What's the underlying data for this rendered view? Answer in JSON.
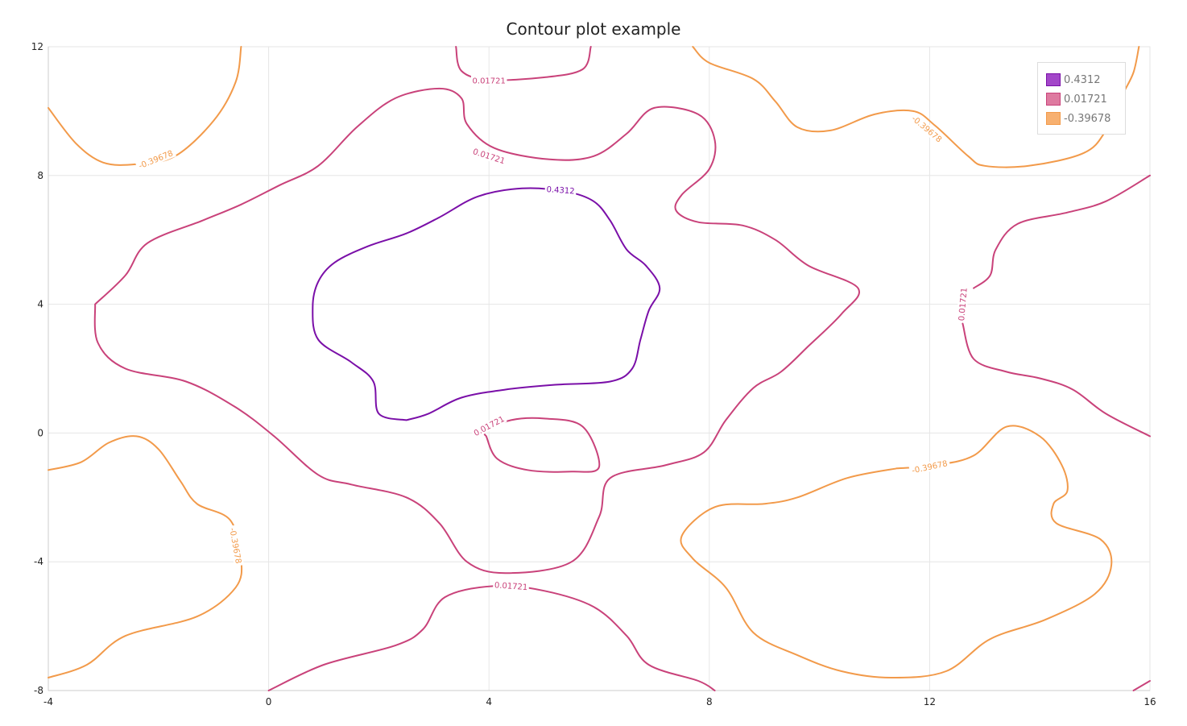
{
  "chart_data": {
    "type": "contour",
    "title": "Contour plot example",
    "xlabel": "",
    "ylabel": "",
    "xlim": [
      -4,
      16
    ],
    "ylim": [
      -8,
      12
    ],
    "x_ticks": [
      -4,
      0,
      4,
      8,
      12,
      16
    ],
    "y_ticks": [
      12,
      8,
      4,
      0,
      -4,
      -8
    ],
    "grid": true,
    "legend_position": "top-right",
    "levels": [
      {
        "name": "0.4312",
        "value": 0.4312,
        "color": "#7a0fa8",
        "swatch": "#a347c9",
        "swatch_border": "#7a0fa8"
      },
      {
        "name": "0.01721",
        "value": 0.01721,
        "color": "#c9427a",
        "swatch": "#de7aa0",
        "swatch_border": "#c9427a"
      },
      {
        "name": "-0.39678",
        "value": -0.39678,
        "color": "#f29a4a",
        "swatch": "#f7b070",
        "swatch_border": "#f29a4a"
      }
    ],
    "contours": [
      {
        "level": 0,
        "label": "0.4312",
        "label_at": [
          5.3,
          7.55
        ],
        "label_angle": 4,
        "points": [
          [
            2.5,
            0.4
          ],
          [
            2.0,
            0.6
          ],
          [
            1.9,
            1.6
          ],
          [
            1.5,
            2.2
          ],
          [
            0.9,
            2.9
          ],
          [
            0.8,
            3.9
          ],
          [
            0.9,
            4.7
          ],
          [
            1.2,
            5.3
          ],
          [
            1.8,
            5.8
          ],
          [
            2.5,
            6.2
          ],
          [
            3.1,
            6.7
          ],
          [
            3.8,
            7.35
          ],
          [
            4.6,
            7.6
          ],
          [
            5.4,
            7.5
          ],
          [
            5.9,
            7.2
          ],
          [
            6.2,
            6.6
          ],
          [
            6.5,
            5.7
          ],
          [
            6.85,
            5.2
          ],
          [
            7.1,
            4.5
          ],
          [
            6.9,
            3.8
          ],
          [
            6.75,
            2.9
          ],
          [
            6.6,
            2.0
          ],
          [
            6.2,
            1.6
          ],
          [
            5.2,
            1.5
          ],
          [
            4.3,
            1.35
          ],
          [
            3.5,
            1.1
          ],
          [
            2.9,
            0.6
          ],
          [
            2.5,
            0.4
          ]
        ]
      },
      {
        "level": 1,
        "label": "0.01721",
        "label_at": [
          4.0,
          0.22
        ],
        "label_angle": -28,
        "points": [
          [
            3.95,
            -0.1
          ],
          [
            4.15,
            -0.8
          ],
          [
            4.7,
            -1.15
          ],
          [
            5.5,
            -1.2
          ],
          [
            6.0,
            -1.05
          ],
          [
            5.7,
            0.2
          ],
          [
            5.0,
            0.45
          ],
          [
            4.4,
            0.4
          ],
          [
            3.95,
            0.05
          ],
          [
            3.95,
            -0.1
          ]
        ]
      },
      {
        "level": 1,
        "label": "0.01721",
        "label_at": [
          4.4,
          -4.75
        ],
        "label_angle": 4,
        "points": [
          [
            0.0,
            -8.0
          ],
          [
            1.0,
            -7.2
          ],
          [
            2.3,
            -6.6
          ],
          [
            2.8,
            -6.1
          ],
          [
            3.2,
            -5.1
          ],
          [
            4.1,
            -4.75
          ],
          [
            5.0,
            -4.9
          ],
          [
            5.9,
            -5.4
          ],
          [
            6.5,
            -6.3
          ],
          [
            6.9,
            -7.2
          ],
          [
            7.8,
            -7.7
          ],
          [
            8.1,
            -8.0
          ]
        ]
      },
      {
        "level": 1,
        "label": "0.01721",
        "label_at": [
          4.0,
          10.95
        ],
        "label_angle": 0,
        "points": [
          [
            3.4,
            12.0
          ],
          [
            3.5,
            11.25
          ],
          [
            4.0,
            10.97
          ],
          [
            5.0,
            11.05
          ],
          [
            5.7,
            11.3
          ],
          [
            5.85,
            12.0
          ]
        ]
      },
      {
        "level": 1,
        "label": "0.01721",
        "label_at": [
          12.6,
          4.0
        ],
        "label_angle": -85,
        "points": [
          [
            12.6,
            3.4
          ],
          [
            12.8,
            2.3
          ],
          [
            13.4,
            1.9
          ],
          [
            14.0,
            1.7
          ],
          [
            14.6,
            1.35
          ],
          [
            15.2,
            0.6
          ],
          [
            16.0,
            -0.1
          ]
        ]
      },
      {
        "level": 1,
        "label": "",
        "points": [
          [
            12.8,
            4.5
          ],
          [
            13.1,
            4.9
          ],
          [
            13.2,
            5.7
          ],
          [
            13.6,
            6.5
          ],
          [
            14.5,
            6.85
          ],
          [
            15.2,
            7.2
          ],
          [
            16.0,
            8.0
          ]
        ]
      },
      {
        "level": 1,
        "label": "0.01721",
        "label_at": [
          4.0,
          8.6
        ],
        "label_angle": 18,
        "points": [
          [
            -3.15,
            4.0
          ],
          [
            -2.6,
            4.9
          ],
          [
            -2.2,
            5.9
          ],
          [
            -1.2,
            6.6
          ],
          [
            -0.5,
            7.1
          ],
          [
            0.2,
            7.7
          ],
          [
            0.9,
            8.3
          ],
          [
            1.6,
            9.5
          ],
          [
            2.3,
            10.4
          ],
          [
            3.1,
            10.7
          ],
          [
            3.5,
            10.4
          ],
          [
            3.6,
            9.6
          ],
          [
            4.1,
            8.85
          ],
          [
            5.1,
            8.5
          ],
          [
            5.9,
            8.6
          ],
          [
            6.5,
            9.3
          ],
          [
            7.0,
            10.1
          ],
          [
            7.8,
            9.9
          ],
          [
            8.1,
            9.1
          ],
          [
            8.0,
            8.2
          ],
          [
            7.5,
            7.4
          ],
          [
            7.4,
            6.9
          ],
          [
            7.8,
            6.55
          ],
          [
            8.6,
            6.45
          ],
          [
            9.2,
            6.0
          ],
          [
            9.8,
            5.2
          ],
          [
            10.7,
            4.5
          ],
          [
            10.4,
            3.7
          ],
          [
            9.8,
            2.7
          ],
          [
            9.3,
            1.9
          ],
          [
            8.8,
            1.4
          ],
          [
            8.3,
            0.4
          ],
          [
            7.9,
            -0.6
          ],
          [
            7.2,
            -1.0
          ],
          [
            6.2,
            -1.4
          ],
          [
            6.0,
            -2.6
          ],
          [
            5.5,
            -4.0
          ],
          [
            4.3,
            -4.35
          ],
          [
            3.6,
            -4.0
          ],
          [
            3.1,
            -2.8
          ],
          [
            2.5,
            -2.0
          ],
          [
            1.5,
            -1.6
          ],
          [
            0.9,
            -1.3
          ],
          [
            0.1,
            -0.1
          ],
          [
            -0.6,
            0.8
          ],
          [
            -1.5,
            1.6
          ],
          [
            -2.6,
            2.0
          ],
          [
            -3.1,
            2.8
          ],
          [
            -3.15,
            4.0
          ]
        ]
      },
      {
        "level": 1,
        "label": "",
        "points": [
          [
            15.7,
            -8.0
          ],
          [
            16.0,
            -7.7
          ]
        ]
      },
      {
        "level": 2,
        "label": "-0.39678",
        "label_at": [
          -2.05,
          8.5
        ],
        "label_angle": -22,
        "points": [
          [
            -4.0,
            10.1
          ],
          [
            -3.5,
            9.0
          ],
          [
            -3.0,
            8.4
          ],
          [
            -2.4,
            8.35
          ],
          [
            -1.7,
            8.6
          ],
          [
            -1.0,
            9.7
          ],
          [
            -0.6,
            10.9
          ],
          [
            -0.5,
            12.0
          ]
        ]
      },
      {
        "level": 2,
        "label": "-0.39678",
        "label_at": [
          -0.6,
          -3.5
        ],
        "label_angle": 80,
        "points": [
          [
            -4.0,
            -1.15
          ],
          [
            -3.4,
            -0.9
          ],
          [
            -2.9,
            -0.3
          ],
          [
            -2.4,
            -0.1
          ],
          [
            -2.0,
            -0.5
          ],
          [
            -1.6,
            -1.5
          ],
          [
            -1.3,
            -2.2
          ],
          [
            -0.7,
            -2.7
          ],
          [
            -0.5,
            -3.9
          ],
          [
            -0.6,
            -4.8
          ],
          [
            -1.3,
            -5.7
          ],
          [
            -2.6,
            -6.3
          ],
          [
            -3.3,
            -7.2
          ],
          [
            -4.0,
            -7.6
          ]
        ]
      },
      {
        "level": 2,
        "label": "-0.39678",
        "label_at": [
          11.95,
          9.45
        ],
        "label_angle": 40,
        "points": [
          [
            7.7,
            12.0
          ],
          [
            8.0,
            11.5
          ],
          [
            8.8,
            11.0
          ],
          [
            9.2,
            10.3
          ],
          [
            9.6,
            9.5
          ],
          [
            10.2,
            9.4
          ],
          [
            11.0,
            9.9
          ],
          [
            11.7,
            10.0
          ],
          [
            12.1,
            9.55
          ],
          [
            12.7,
            8.6
          ],
          [
            13.0,
            8.3
          ],
          [
            13.8,
            8.3
          ],
          [
            14.8,
            8.7
          ],
          [
            15.2,
            9.4
          ],
          [
            15.5,
            10.5
          ],
          [
            15.7,
            11.2
          ],
          [
            15.8,
            12.0
          ]
        ]
      },
      {
        "level": 2,
        "label": "-0.39678",
        "label_at": [
          12.0,
          -1.05
        ],
        "label_angle": -12,
        "points": [
          [
            11.4,
            -1.1
          ],
          [
            12.1,
            -1.0
          ],
          [
            12.8,
            -0.7
          ],
          [
            13.4,
            0.2
          ],
          [
            14.0,
            -0.1
          ],
          [
            14.4,
            -1.0
          ],
          [
            14.5,
            -1.8
          ],
          [
            14.25,
            -2.2
          ],
          [
            14.3,
            -2.8
          ],
          [
            15.1,
            -3.3
          ],
          [
            15.3,
            -4.1
          ],
          [
            15.0,
            -5.0
          ],
          [
            14.1,
            -5.8
          ],
          [
            13.1,
            -6.4
          ],
          [
            12.3,
            -7.4
          ],
          [
            11.3,
            -7.6
          ],
          [
            10.4,
            -7.4
          ],
          [
            9.6,
            -6.9
          ],
          [
            8.8,
            -6.2
          ],
          [
            8.3,
            -4.8
          ],
          [
            7.7,
            -3.9
          ],
          [
            7.5,
            -3.2
          ],
          [
            8.1,
            -2.3
          ],
          [
            9.0,
            -2.2
          ],
          [
            9.6,
            -2.0
          ],
          [
            10.5,
            -1.4
          ],
          [
            11.4,
            -1.1
          ]
        ]
      }
    ]
  },
  "legend": {
    "items": [
      {
        "label": "0.4312"
      },
      {
        "label": "0.01721"
      },
      {
        "label": "-0.39678"
      }
    ]
  }
}
